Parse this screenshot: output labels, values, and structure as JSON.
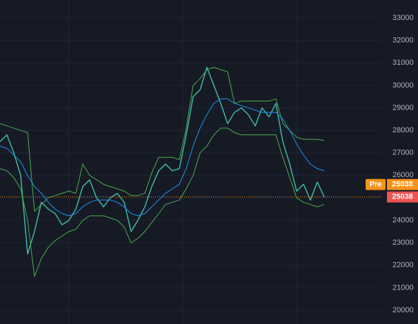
{
  "chart_data": {
    "type": "line",
    "series": [
      {
        "color": "#3fae9f",
        "width": 1.6,
        "values": [
          27500,
          27800,
          27000,
          26000,
          22500,
          23500,
          24800,
          24500,
          24300,
          23800,
          24000,
          24500,
          25500,
          25800,
          25000,
          24600,
          25000,
          25200,
          24800,
          23500,
          24000,
          24600,
          25500,
          26200,
          26500,
          26200,
          26300,
          27800,
          29500,
          29800,
          30800,
          30000,
          29200,
          28300,
          28800,
          29000,
          28700,
          28200,
          29000,
          28600,
          29200,
          27500,
          26500,
          25300,
          25600,
          24900,
          25700,
          25038
        ]
      },
      {
        "color": "#4caf50",
        "width": 1,
        "values": [
          28300,
          28200,
          28100,
          28000,
          27900,
          24400,
          24700,
          25000,
          25100,
          25200,
          25300,
          25200,
          26500,
          26000,
          25800,
          25600,
          25500,
          25400,
          25300,
          25100,
          25100,
          25200,
          26100,
          26800,
          26800,
          26800,
          26700,
          28100,
          30000,
          30300,
          30700,
          30800,
          30700,
          30600,
          29200,
          29300,
          29300,
          29300,
          29300,
          29300,
          29400,
          28300,
          28000,
          27700,
          27600,
          27600,
          27600,
          27550
        ]
      },
      {
        "color": "#2196f3",
        "width": 1,
        "values": [
          27300,
          27200,
          26900,
          26600,
          26000,
          25500,
          25200,
          24800,
          24500,
          24300,
          24200,
          24300,
          24600,
          24800,
          24900,
          24900,
          24900,
          24800,
          24600,
          24300,
          24200,
          24300,
          24600,
          24900,
          25200,
          25400,
          25600,
          26300,
          27300,
          28100,
          28700,
          29200,
          29400,
          29400,
          29200,
          29100,
          29000,
          28900,
          28800,
          28800,
          28800,
          28500,
          28000,
          27400,
          26900,
          26500,
          26300,
          26200
        ]
      },
      {
        "color": "#4caf50",
        "width": 1,
        "values": [
          26300,
          26200,
          25900,
          25400,
          24000,
          21500,
          22300,
          22800,
          23100,
          23300,
          23500,
          23600,
          24000,
          24200,
          24200,
          24200,
          24100,
          24000,
          23700,
          23000,
          23200,
          23500,
          23900,
          24300,
          24700,
          24800,
          24900,
          25400,
          26000,
          27000,
          27300,
          27800,
          28100,
          28100,
          27900,
          27800,
          27800,
          27800,
          27800,
          27800,
          27800,
          26800,
          25900,
          25000,
          24800,
          24700,
          24600,
          24700
        ]
      }
    ],
    "ylim": [
      19387,
      33797
    ],
    "yticks": [
      20000,
      21000,
      22000,
      23000,
      24000,
      25000,
      26000,
      27000,
      28000,
      29000,
      30000,
      31000,
      32000,
      33000
    ],
    "grid": true,
    "pre_label": "Pre",
    "pre_price": 25038,
    "pre_color": "#f7931a",
    "last_price": 25038,
    "last_color": "#ef5350"
  }
}
